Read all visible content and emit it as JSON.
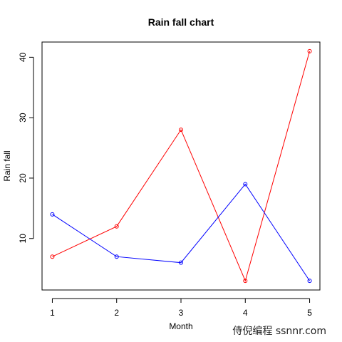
{
  "chart_data": {
    "type": "line",
    "title": "Rain fall chart",
    "xlabel": "Month",
    "ylabel": "Rain fall",
    "x": [
      1,
      2,
      3,
      4,
      5
    ],
    "x_ticks": [
      "1",
      "2",
      "3",
      "4",
      "5"
    ],
    "y_ticks": [
      "10",
      "20",
      "30",
      "40"
    ],
    "y_tick_values": [
      10,
      20,
      30,
      40
    ],
    "xlim": [
      0.84,
      5.16
    ],
    "ylim": [
      1.48,
      42.52
    ],
    "grid": false,
    "markers": "open-circle",
    "series": [
      {
        "color": "#ff0000",
        "values": [
          7,
          12,
          28,
          3,
          41
        ]
      },
      {
        "color": "#0000ff",
        "values": [
          14,
          7,
          6,
          19,
          3
        ]
      }
    ]
  },
  "watermark": "侍倪编程 ssnnr.com"
}
